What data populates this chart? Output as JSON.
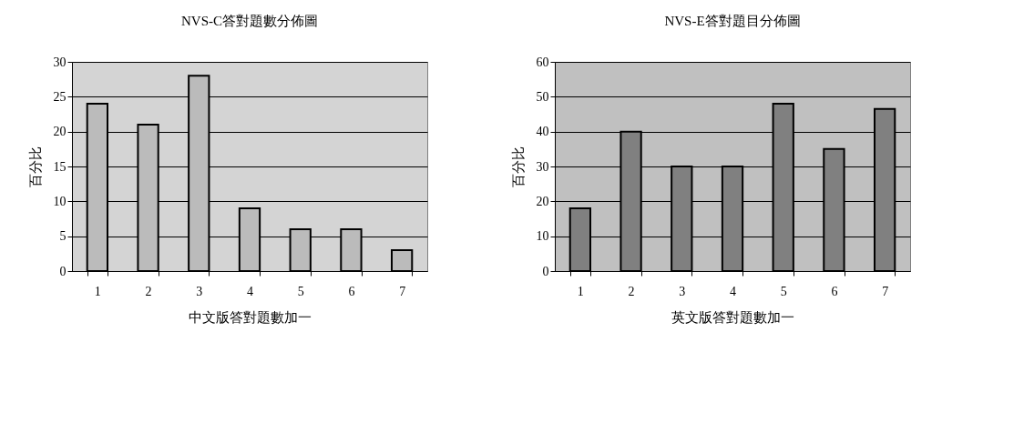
{
  "chart_data": [
    {
      "type": "bar",
      "title": "NVS-C答對題數分佈圖",
      "xlabel": "中文版答對題數加一",
      "ylabel": "百分比",
      "categories": [
        "1",
        "2",
        "3",
        "4",
        "5",
        "6",
        "7"
      ],
      "values": [
        24,
        21,
        28,
        9,
        6,
        6,
        3
      ],
      "color": "#bbbbbb",
      "ylim": [
        0,
        30
      ],
      "yticks": [
        0,
        5,
        10,
        15,
        20,
        25,
        30
      ],
      "grid": "y"
    },
    {
      "type": "bar",
      "title": "NVS-E答對題目分佈圖",
      "xlabel": "英文版答對題數加一",
      "ylabel": "百分比",
      "categories": [
        "1",
        "2",
        "3",
        "4",
        "5",
        "6",
        "7"
      ],
      "values": [
        18,
        40,
        30,
        30,
        48,
        35,
        46.5
      ],
      "color": "#808080",
      "ylim": [
        0,
        60
      ],
      "yticks": [
        0,
        10,
        20,
        30,
        40,
        50,
        60
      ],
      "grid": "y"
    }
  ]
}
